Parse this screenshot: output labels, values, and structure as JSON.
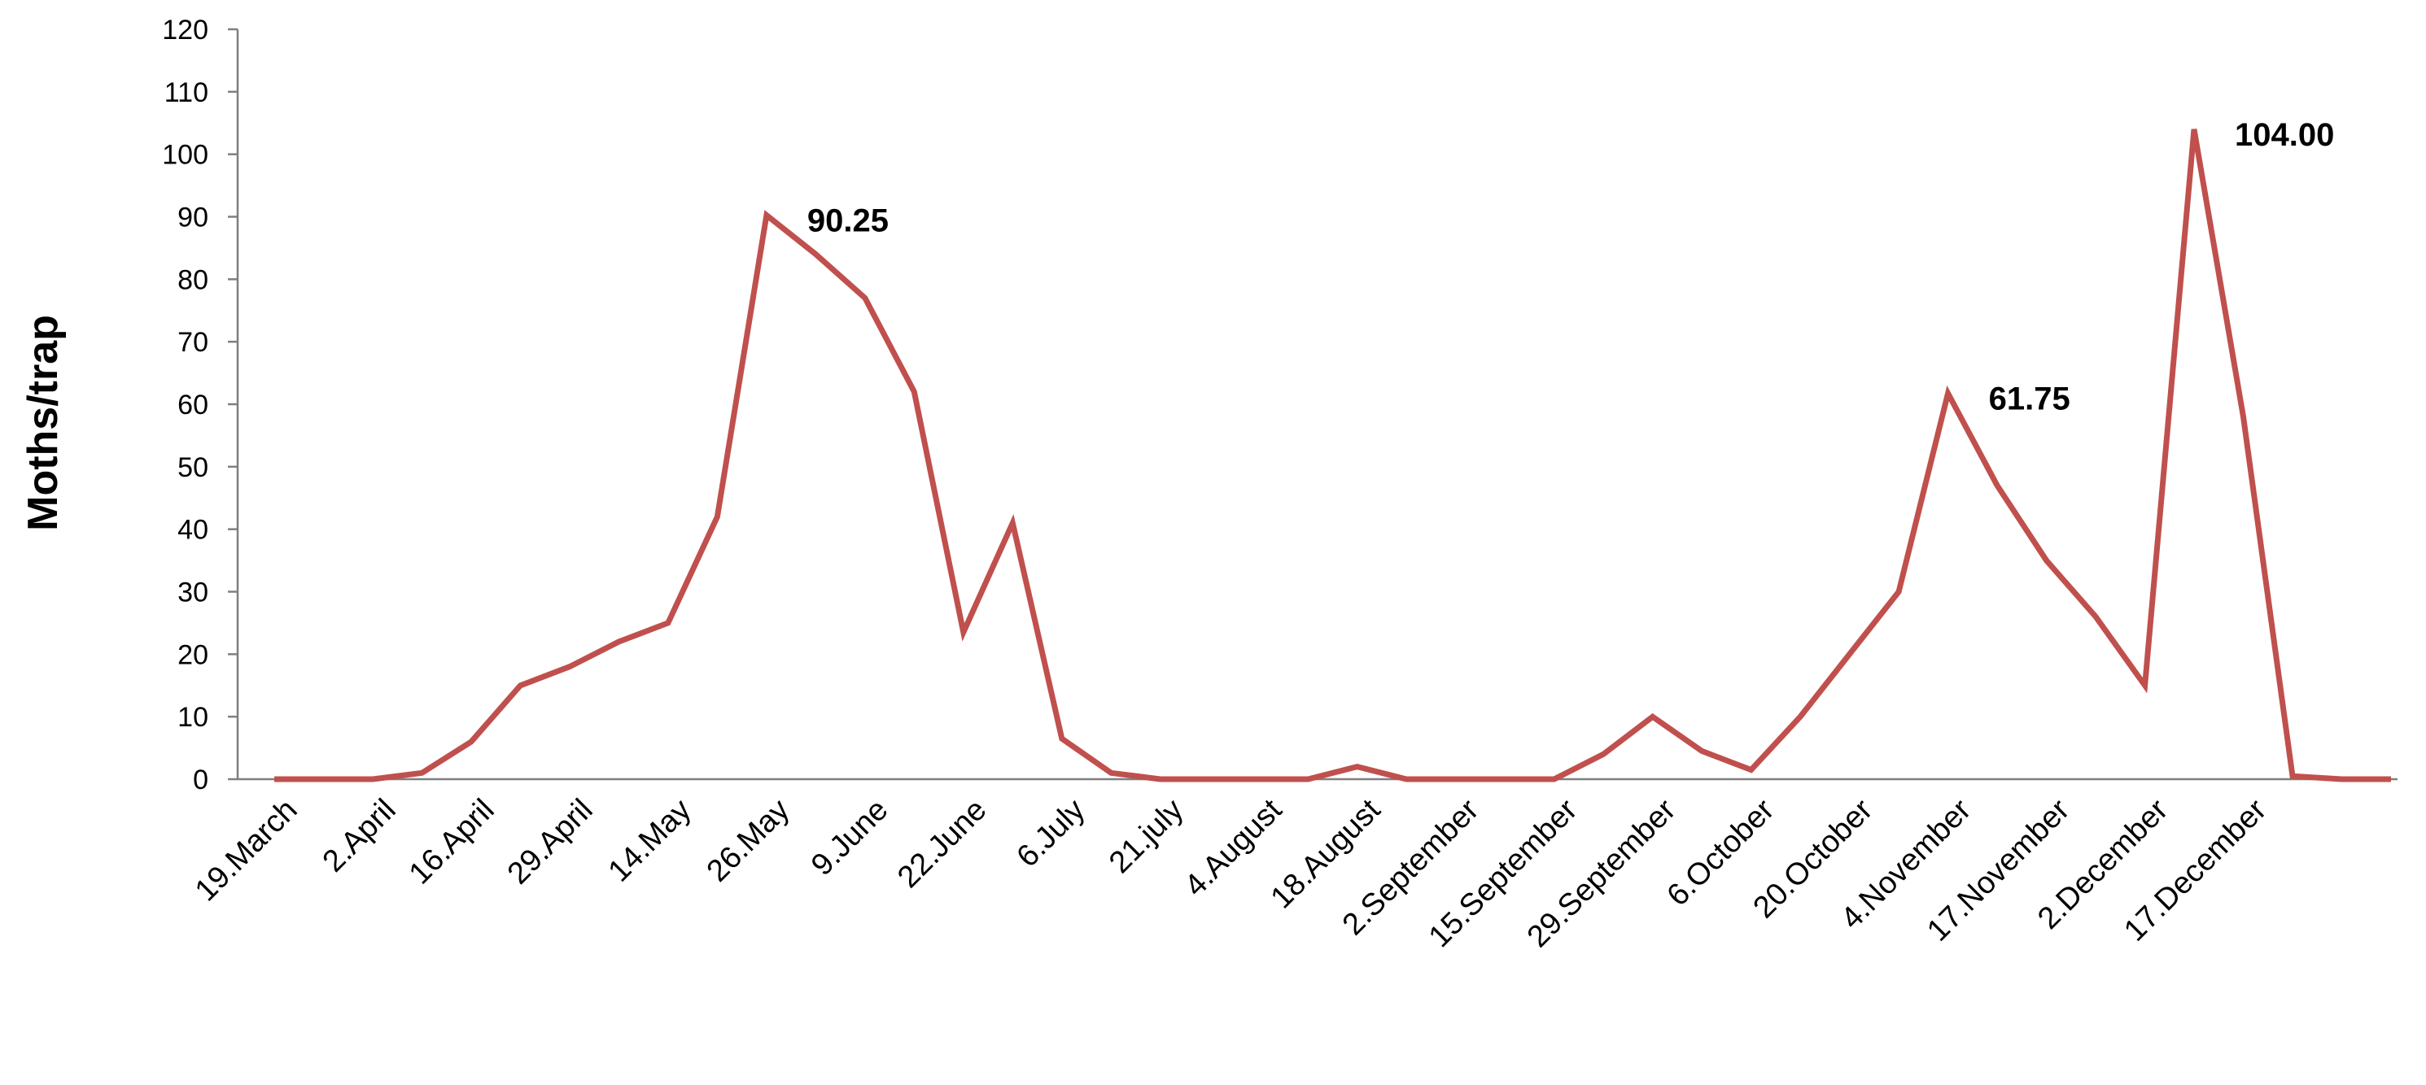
{
  "chart_data": {
    "type": "line",
    "title": "",
    "xlabel": "",
    "ylabel": "Moths/trap",
    "ylim": [
      0,
      120
    ],
    "y_ticks": [
      0,
      10,
      20,
      30,
      40,
      50,
      60,
      70,
      80,
      90,
      100,
      110,
      120
    ],
    "grid": false,
    "legend": "none",
    "line_color": "#C0504D",
    "x_labels": [
      "19.March",
      "2.April",
      "16.April",
      "29.April",
      "14.May",
      "26.May",
      "9.June",
      "22.June",
      "6.July",
      "21.july",
      "4.August",
      "18.August",
      "2.September",
      "15.September",
      "29.September",
      "6.October",
      "20.October",
      "4.November",
      "17.November",
      "2.December",
      "17.December"
    ],
    "series": [
      {
        "values": [
          0,
          0,
          0,
          1,
          6,
          15,
          18,
          22,
          25,
          42,
          90.25,
          84,
          77,
          62,
          23.5,
          41,
          6.5,
          1,
          0,
          0,
          0,
          0,
          2,
          0,
          0,
          0,
          0,
          4,
          10,
          4.5,
          1.5,
          10,
          20,
          30,
          61.75,
          47,
          35,
          26,
          15,
          104,
          58,
          0.5,
          0,
          0
        ]
      }
    ],
    "data_labels": [
      {
        "index": 10,
        "text": "90.25"
      },
      {
        "index": 34,
        "text": "61.75"
      },
      {
        "index": 39,
        "text": "104.00"
      }
    ]
  }
}
